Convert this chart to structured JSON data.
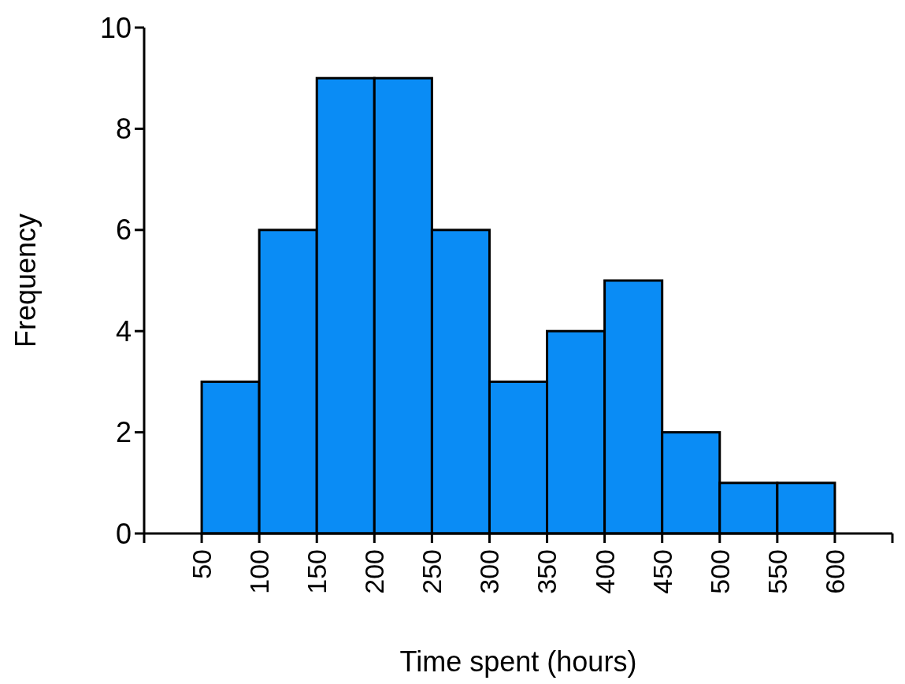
{
  "chart_data": {
    "type": "histogram",
    "xlabel": "Time spent (hours)",
    "ylabel": "Frequency",
    "bins": [
      50,
      100,
      150,
      200,
      250,
      300,
      350,
      400,
      450,
      500,
      550,
      600
    ],
    "values": [
      3,
      6,
      9,
      9,
      6,
      3,
      4,
      5,
      2,
      1,
      1
    ],
    "color": "#0a8cf5",
    "xlim": [
      0,
      650
    ],
    "xticks": [
      {
        "value": 0,
        "label": null
      },
      50,
      100,
      150,
      200,
      250,
      300,
      350,
      400,
      450,
      500,
      550,
      600,
      {
        "value": 650,
        "label": null
      }
    ],
    "ylim": [
      0,
      10
    ],
    "yticks": [
      0,
      2,
      4,
      6,
      8,
      10
    ],
    "grid": false
  }
}
